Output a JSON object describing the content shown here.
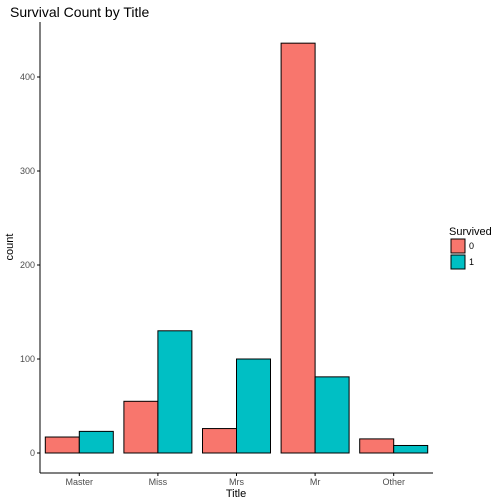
{
  "chart_data": {
    "type": "bar",
    "title": "Survival Count by Title",
    "xlabel": "Title",
    "ylabel": "count",
    "categories": [
      "Master",
      "Miss",
      "Mrs",
      "Mr",
      "Other"
    ],
    "series": [
      {
        "name": "0",
        "color": "#F8766D",
        "values": [
          17,
          55,
          26,
          436,
          15
        ]
      },
      {
        "name": "1",
        "color": "#00BFC4",
        "values": [
          23,
          130,
          100,
          81,
          8
        ]
      }
    ],
    "ylim": [
      0,
      460
    ],
    "yticks": [
      0,
      100,
      200,
      300,
      400
    ],
    "grid": false,
    "legend": {
      "title": "Survived",
      "placement": "right"
    }
  }
}
